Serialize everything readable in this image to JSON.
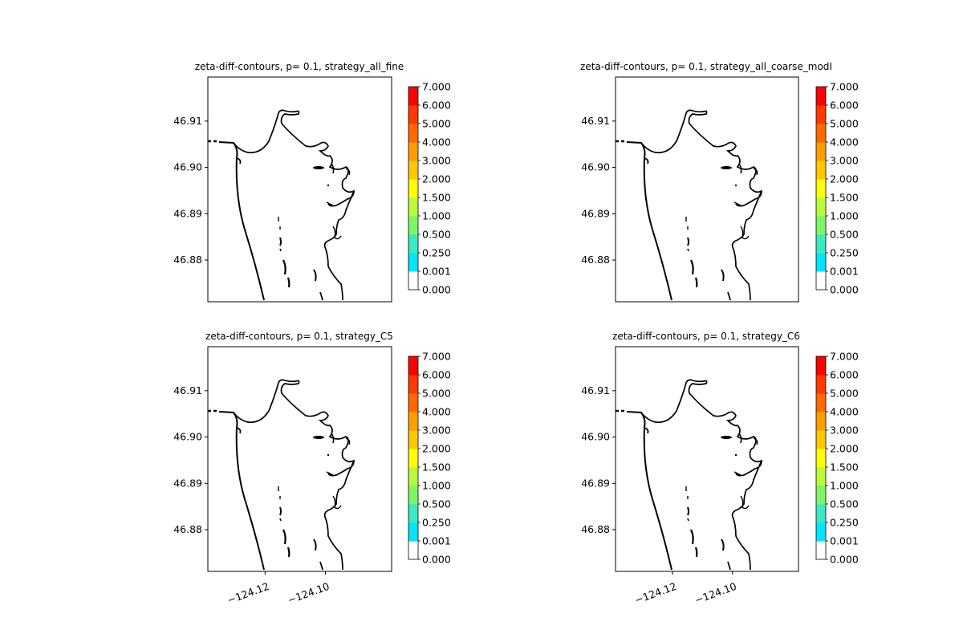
{
  "figure": {
    "background": "#ffffff",
    "coastline_color": "#000000"
  },
  "colorbar": {
    "levels": [
      0.0,
      0.001,
      0.25,
      0.5,
      1.0,
      1.5,
      2.0,
      3.0,
      4.0,
      5.0,
      6.0,
      7.0
    ],
    "tick_labels": [
      "0.000",
      "0.001",
      "0.250",
      "0.500",
      "1.000",
      "1.500",
      "2.000",
      "3.000",
      "4.000",
      "5.000",
      "6.000",
      "7.000"
    ],
    "colors": [
      "#ffffff",
      "#00e5ff",
      "#3be8c4",
      "#7cf566",
      "#b9fa3a",
      "#ffff00",
      "#ffc800",
      "#ff9c00",
      "#ff6a00",
      "#ff3a00",
      "#ff0000"
    ]
  },
  "chart_data": [
    {
      "type": "contour",
      "title": "zeta-diff-contours, p= 0.1, strategy_all_fine",
      "xlabel": "",
      "ylabel": "",
      "y_ticks": [
        46.88,
        46.89,
        46.9,
        46.91
      ],
      "y_tick_labels": [
        "46.88",
        "46.89",
        "46.90",
        "46.91"
      ],
      "x_ticks": [],
      "x_tick_labels": [],
      "xlim": [
        -124.139,
        -124.078
      ],
      "ylim": [
        46.871,
        46.9195
      ],
      "grid": false
    },
    {
      "type": "contour",
      "title": "zeta-diff-contours, p= 0.1, strategy_all_coarse_modI",
      "xlabel": "",
      "ylabel": "",
      "y_ticks": [
        46.88,
        46.89,
        46.9,
        46.91
      ],
      "y_tick_labels": [
        "46.88",
        "46.89",
        "46.90",
        "46.91"
      ],
      "x_ticks": [],
      "x_tick_labels": [],
      "xlim": [
        -124.139,
        -124.078
      ],
      "ylim": [
        46.871,
        46.9195
      ],
      "grid": false
    },
    {
      "type": "contour",
      "title": "zeta-diff-contours, p= 0.1, strategy_C5",
      "xlabel": "",
      "ylabel": "",
      "y_ticks": [
        46.88,
        46.89,
        46.9,
        46.91
      ],
      "y_tick_labels": [
        "46.88",
        "46.89",
        "46.90",
        "46.91"
      ],
      "x_ticks": [
        -124.12,
        -124.1
      ],
      "x_tick_labels": [
        "−124.12",
        "−124.10"
      ],
      "xlim": [
        -124.139,
        -124.078
      ],
      "ylim": [
        46.871,
        46.9195
      ],
      "grid": false
    },
    {
      "type": "contour",
      "title": "zeta-diff-contours, p= 0.1, strategy_C6",
      "xlabel": "",
      "ylabel": "",
      "y_ticks": [
        46.88,
        46.89,
        46.9,
        46.91
      ],
      "y_tick_labels": [
        "46.88",
        "46.89",
        "46.90",
        "46.91"
      ],
      "x_ticks": [
        -124.12,
        -124.1
      ],
      "x_tick_labels": [
        "−124.12",
        "−124.10"
      ],
      "xlim": [
        -124.139,
        -124.078
      ],
      "ylim": [
        46.871,
        46.9195
      ],
      "grid": false
    }
  ]
}
